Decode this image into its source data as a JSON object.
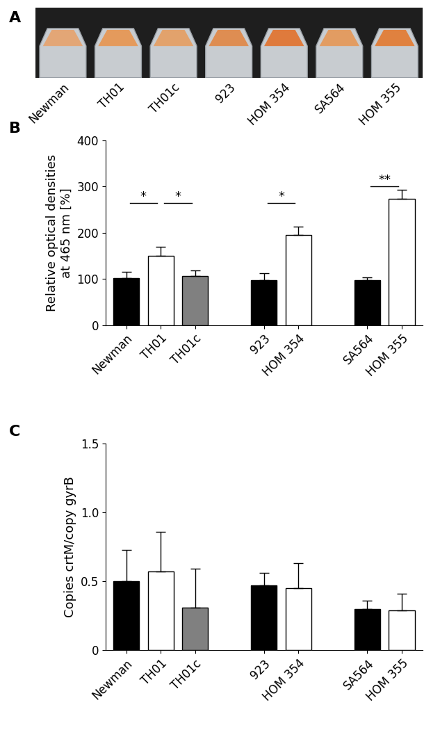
{
  "chart_data": [
    {
      "type": "image",
      "title": "A",
      "categories": [
        "Newman",
        "TH01",
        "TH01c",
        "923",
        "HOM 354",
        "SA564",
        "HOM 355"
      ],
      "colors": [
        "#e3a676",
        "#e49a5c",
        "#e2a26c",
        "#de8d52",
        "#df7a3c",
        "#e29c62",
        "#e0813f"
      ]
    },
    {
      "type": "bar",
      "title": "B",
      "y_label": "Relative optical densities\nat 465 nm [%]",
      "categories": [
        "Newman",
        "TH01",
        "TH01c",
        null,
        "923",
        "HOM 354",
        null,
        "SA564",
        "HOM 355"
      ],
      "values": [
        102,
        150,
        107,
        null,
        98,
        196,
        null,
        98,
        273
      ],
      "errors": [
        14,
        20,
        12,
        null,
        15,
        17,
        null,
        6,
        20
      ],
      "colors": [
        "#000000",
        "#ffffff",
        "#808080",
        null,
        "#000000",
        "#ffffff",
        null,
        "#000000",
        "#ffffff"
      ],
      "significance": [
        {
          "pair": [
            "Newman",
            "TH01"
          ],
          "label": "*",
          "y": 265
        },
        {
          "pair": [
            "TH01",
            "TH01c"
          ],
          "label": "*",
          "y": 265
        },
        {
          "pair": [
            "923",
            "HOM 354"
          ],
          "label": "*",
          "y": 265
        },
        {
          "pair": [
            "SA564",
            "HOM 355"
          ],
          "label": "**",
          "y": 301
        }
      ],
      "ylim": [
        0,
        400
      ],
      "yticks": [
        0,
        100,
        200,
        300,
        400
      ]
    },
    {
      "type": "bar",
      "title": "C",
      "y_label": "Copies crtM/copy gyrB",
      "categories": [
        "Newman",
        "TH01",
        "TH01c",
        null,
        "923",
        "HOM 354",
        null,
        "SA564",
        "HOM 355"
      ],
      "values": [
        0.5,
        0.57,
        0.31,
        null,
        0.47,
        0.45,
        null,
        0.3,
        0.29
      ],
      "errors": [
        0.23,
        0.29,
        0.28,
        null,
        0.09,
        0.18,
        null,
        0.06,
        0.12
      ],
      "colors": [
        "#000000",
        "#ffffff",
        "#808080",
        null,
        "#000000",
        "#ffffff",
        null,
        "#000000",
        "#ffffff"
      ],
      "ylim": [
        0,
        1.5
      ],
      "yticks": [
        0,
        0.5,
        {
          "value": 1,
          "label": "1.0"
        },
        1.5
      ]
    }
  ]
}
